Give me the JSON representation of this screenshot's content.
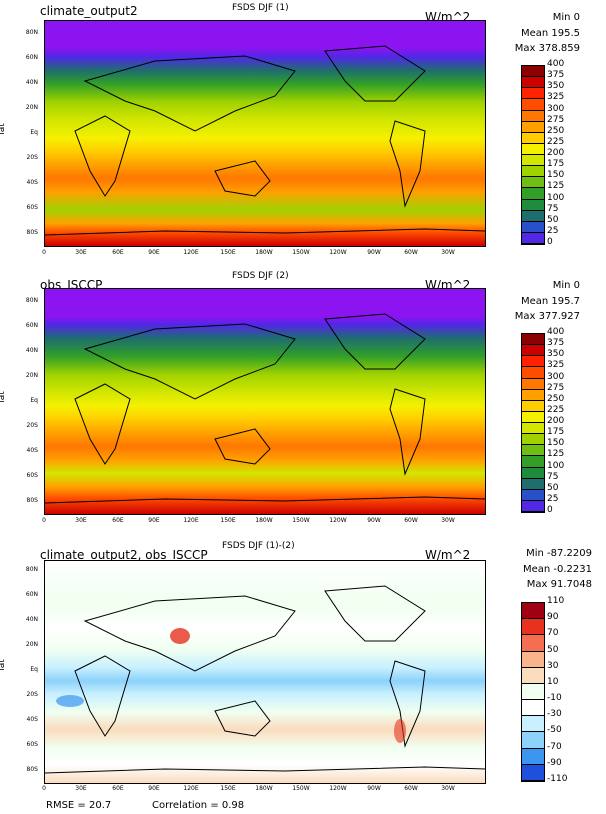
{
  "panels": [
    {
      "case": "climate_output2",
      "title": "FSDS DJF (1)",
      "units": "W/m^2",
      "min": "Min 0",
      "mean": "Mean 195.5",
      "max": "Max 378.859",
      "colorbar_labels": [
        "400",
        "375",
        "350",
        "325",
        "300",
        "275",
        "250",
        "225",
        "200",
        "175",
        "150",
        "125",
        "100",
        "75",
        "50",
        "25",
        "0"
      ]
    },
    {
      "case": "obs_ISCCP",
      "title": "FSDS DJF (2)",
      "units": "W/m^2",
      "min": "Min 0",
      "mean": "Mean 195.7",
      "max": "Max 377.927",
      "colorbar_labels": [
        "400",
        "375",
        "350",
        "325",
        "300",
        "275",
        "250",
        "225",
        "200",
        "175",
        "150",
        "125",
        "100",
        "75",
        "50",
        "25",
        "0"
      ]
    },
    {
      "case": "climate_output2, obs_ISCCP",
      "title": "FSDS DJF (1)-(2)",
      "units": "W/m^2",
      "min": "Min -87.2209",
      "mean": "Mean -0.2231",
      "max": "Max 91.7048",
      "colorbar_labels": [
        "110",
        "90",
        "70",
        "50",
        "30",
        "10",
        "-10",
        "-30",
        "-50",
        "-70",
        "-90",
        "-110"
      ]
    }
  ],
  "axes": {
    "ylabel": "lat",
    "yticks": [
      "80N",
      "60N",
      "40N",
      "20N",
      "Eq",
      "20S",
      "40S",
      "60S",
      "80S"
    ],
    "xticks": [
      "0",
      "30E",
      "60E",
      "90E",
      "120E",
      "150E",
      "180W",
      "150W",
      "120W",
      "90W",
      "60W",
      "30W"
    ]
  },
  "footer": {
    "rmse": "RMSE = 20.7",
    "correlation": "Correlation = 0.98"
  },
  "colors": {
    "abs": [
      "#8b0000",
      "#cd0000",
      "#ff2200",
      "#ff4d00",
      "#ff7700",
      "#ffa000",
      "#ffcc00",
      "#f5f000",
      "#d2e600",
      "#a0d200",
      "#6ebe14",
      "#32a028",
      "#1e8c3c",
      "#1e6e6e",
      "#2850c8",
      "#5028e6",
      "#8c14f0"
    ],
    "diff": [
      "#a00014",
      "#e6321e",
      "#f56e50",
      "#fab48c",
      "#fadcbe",
      "#f0fff0",
      "#ffffff",
      "#c8f0ff",
      "#8cd2fa",
      "#3c96f0",
      "#1e50dc",
      "#1414b4"
    ]
  }
}
